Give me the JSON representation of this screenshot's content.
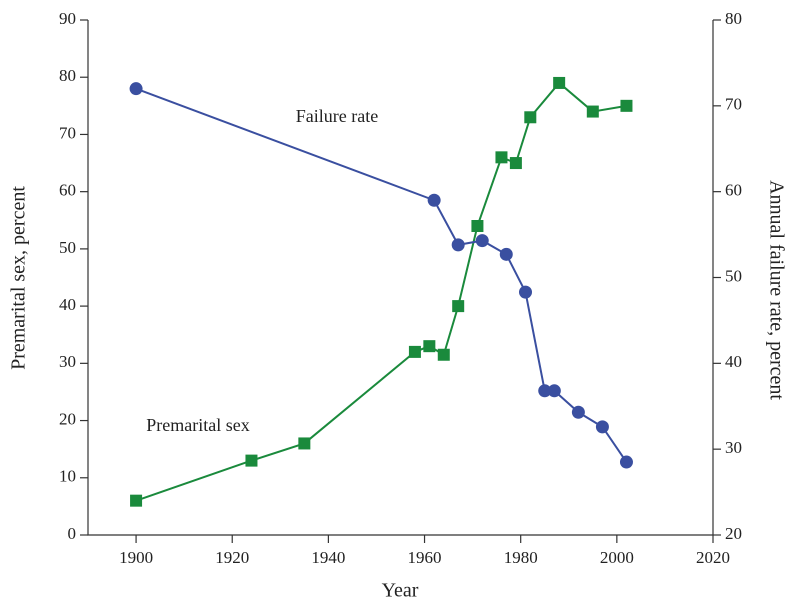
{
  "chart_data": {
    "type": "line",
    "xlabel": "Year",
    "ylabel": "Premarital sex, percent",
    "y2label": "Annual failure rate, percent",
    "xlim": [
      1890,
      2020
    ],
    "xticks": [
      1900,
      1920,
      1940,
      1960,
      1980,
      2000,
      2020
    ],
    "ylim": [
      0,
      90
    ],
    "yticks": [
      0,
      10,
      20,
      30,
      40,
      50,
      60,
      70,
      80,
      90
    ],
    "y2lim": [
      20,
      80
    ],
    "y2ticks": [
      20,
      30,
      40,
      50,
      60,
      70,
      80
    ],
    "grid": false,
    "annotations": [
      "Failure rate",
      "Premarital sex"
    ],
    "series": [
      {
        "name": "Premarital sex",
        "color": "#1a8a3c",
        "marker": "square",
        "axis": "y",
        "x": [
          1900,
          1924,
          1935,
          1958,
          1961,
          1964,
          1967,
          1971,
          1976,
          1979,
          1982,
          1988,
          1995,
          2002
        ],
        "values": [
          6,
          13,
          16,
          32,
          33,
          31.5,
          40,
          54,
          66,
          65,
          73,
          79,
          74,
          75
        ]
      },
      {
        "name": "Failure rate",
        "color": "#3a4fa0",
        "marker": "circle",
        "axis": "y2",
        "x": [
          1900,
          1962,
          1967,
          1972,
          1977,
          1981,
          1985,
          1987,
          1992,
          1997,
          2002
        ],
        "values": [
          72,
          59,
          53.8,
          54.3,
          52.7,
          48.3,
          36.8,
          36.8,
          34.3,
          32.6,
          28.5
        ]
      }
    ]
  }
}
